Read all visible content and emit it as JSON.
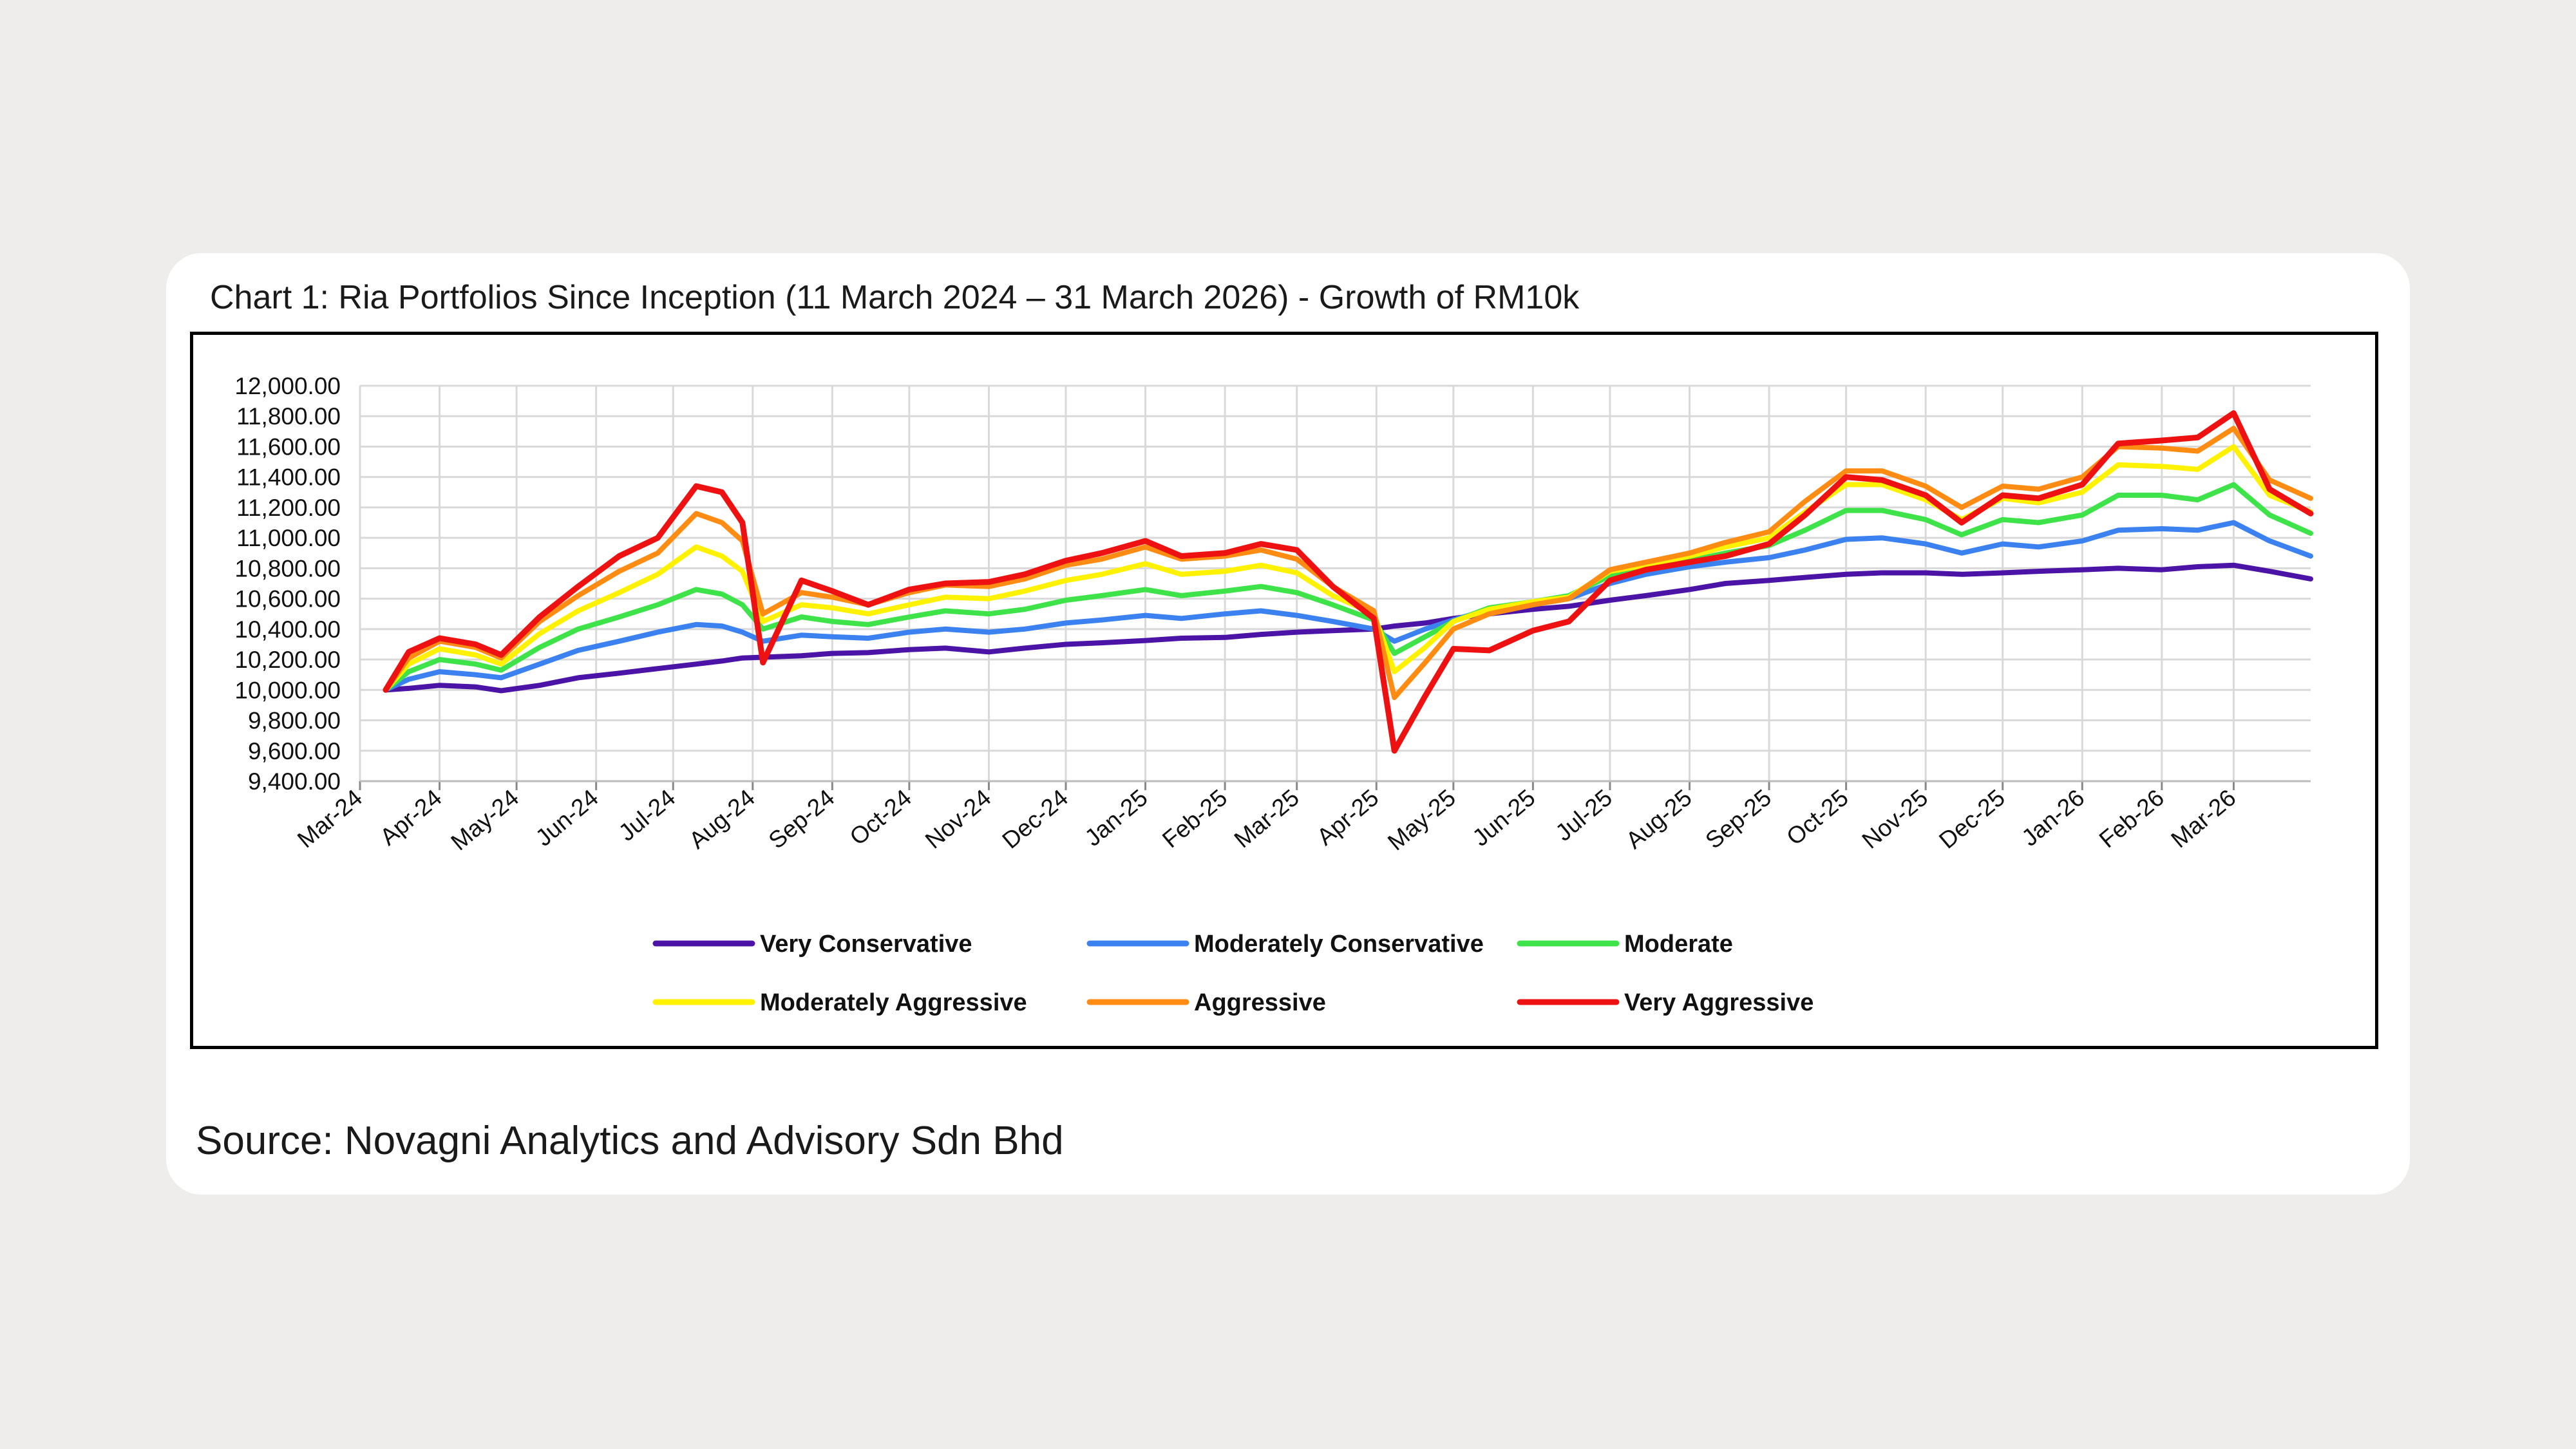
{
  "title": "Chart 1: Ria Portfolios Since Inception (11 March 2024 – 31 March 2026) - Growth of RM10k",
  "source": "Source: Novagni Analytics and Advisory Sdn Bhd",
  "chart_data": {
    "type": "line",
    "title": "Chart 1: Ria Portfolios Since Inception (11 March 2024 – 31 March 2026) - Growth of RM10k",
    "xlabel": "",
    "ylabel": "",
    "ylim": [
      9400,
      12000
    ],
    "grid": true,
    "legend_position": "bottom",
    "y_ticks": [
      "12,000.00",
      "11,800.00",
      "11,600.00",
      "11,400.00",
      "11,200.00",
      "11,000.00",
      "10,800.00",
      "10,600.00",
      "10,400.00",
      "10,200.00",
      "10,000.00",
      "9,800.00",
      "9,600.00",
      "9,400.00"
    ],
    "x_ticks": [
      "Mar-24",
      "Apr-24",
      "May-24",
      "Jun-24",
      "Jul-24",
      "Aug-24",
      "Sep-24",
      "Oct-24",
      "Nov-24",
      "Dec-24",
      "Jan-25",
      "Feb-25",
      "Mar-25",
      "Apr-25",
      "May-25",
      "Jun-25",
      "Jul-25",
      "Aug-25",
      "Sep-25",
      "Oct-25",
      "Nov-25",
      "Dec-25",
      "Jan-26",
      "Feb-26",
      "Mar-26"
    ],
    "x": [
      "2024-03-11",
      "2024-03-20",
      "2024-04-01",
      "2024-04-15",
      "2024-04-25",
      "2024-05-10",
      "2024-05-25",
      "2024-06-10",
      "2024-06-25",
      "2024-07-10",
      "2024-07-20",
      "2024-07-28",
      "2024-08-05",
      "2024-08-20",
      "2024-09-01",
      "2024-09-15",
      "2024-10-01",
      "2024-10-15",
      "2024-11-01",
      "2024-11-15",
      "2024-12-01",
      "2024-12-15",
      "2025-01-01",
      "2025-01-15",
      "2025-02-01",
      "2025-02-15",
      "2025-03-01",
      "2025-03-15",
      "2025-03-31",
      "2025-04-08",
      "2025-04-20",
      "2025-05-01",
      "2025-05-15",
      "2025-06-01",
      "2025-06-15",
      "2025-07-01",
      "2025-07-15",
      "2025-08-01",
      "2025-08-15",
      "2025-09-01",
      "2025-09-15",
      "2025-10-01",
      "2025-10-15",
      "2025-11-01",
      "2025-11-15",
      "2025-12-01",
      "2025-12-15",
      "2026-01-01",
      "2026-01-15",
      "2026-02-01",
      "2026-02-15",
      "2026-03-01",
      "2026-03-15",
      "2026-03-31"
    ],
    "series": [
      {
        "name": "Very Conservative",
        "color": "#4b14a6",
        "values": [
          10000,
          10010,
          10030,
          10020,
          9995,
          10030,
          10080,
          10110,
          10140,
          10170,
          10190,
          10210,
          10215,
          10225,
          10240,
          10245,
          10265,
          10275,
          10250,
          10275,
          10300,
          10310,
          10325,
          10340,
          10345,
          10365,
          10380,
          10390,
          10400,
          10420,
          10440,
          10470,
          10500,
          10530,
          10550,
          10590,
          10620,
          10660,
          10700,
          10720,
          10740,
          10760,
          10770,
          10770,
          10760,
          10770,
          10780,
          10790,
          10800,
          10790,
          10810,
          10820,
          10780,
          10730
        ]
      },
      {
        "name": "Moderately Conservative",
        "color": "#3b82f0",
        "values": [
          10000,
          10070,
          10120,
          10100,
          10080,
          10170,
          10260,
          10320,
          10380,
          10430,
          10420,
          10380,
          10320,
          10360,
          10350,
          10340,
          10380,
          10400,
          10380,
          10400,
          10440,
          10460,
          10490,
          10470,
          10500,
          10520,
          10490,
          10450,
          10400,
          10320,
          10400,
          10460,
          10530,
          10560,
          10600,
          10700,
          10760,
          10810,
          10840,
          10870,
          10920,
          10990,
          11000,
          10960,
          10900,
          10960,
          10940,
          10980,
          11050,
          11060,
          11050,
          11100,
          10980,
          10880
        ]
      },
      {
        "name": "Moderate",
        "color": "#3ee34a",
        "values": [
          10000,
          10120,
          10200,
          10170,
          10130,
          10280,
          10400,
          10480,
          10560,
          10660,
          10630,
          10560,
          10400,
          10480,
          10450,
          10430,
          10480,
          10520,
          10500,
          10530,
          10590,
          10620,
          10660,
          10620,
          10650,
          10680,
          10640,
          10560,
          10460,
          10240,
          10350,
          10450,
          10540,
          10580,
          10620,
          10750,
          10800,
          10850,
          10900,
          10950,
          11050,
          11180,
          11180,
          11120,
          11020,
          11120,
          11100,
          11150,
          11280,
          11280,
          11250,
          11350,
          11150,
          11030
        ]
      },
      {
        "name": "Moderately Aggressive",
        "color": "#fff200",
        "values": [
          10000,
          10170,
          10270,
          10230,
          10170,
          10370,
          10520,
          10640,
          10760,
          10940,
          10880,
          10780,
          10450,
          10560,
          10540,
          10500,
          10560,
          10610,
          10600,
          10650,
          10720,
          10760,
          10830,
          10760,
          10780,
          10820,
          10770,
          10620,
          10500,
          10120,
          10280,
          10450,
          10530,
          10580,
          10610,
          10780,
          10820,
          10880,
          10940,
          11000,
          11170,
          11350,
          11350,
          11250,
          11120,
          11260,
          11230,
          11300,
          11480,
          11470,
          11450,
          11600,
          11280,
          11170
        ]
      },
      {
        "name": "Aggressive",
        "color": "#ff8c12",
        "values": [
          10000,
          10210,
          10320,
          10280,
          10210,
          10450,
          10620,
          10780,
          10900,
          11160,
          11100,
          10980,
          10500,
          10640,
          10610,
          10560,
          10640,
          10690,
          10680,
          10730,
          10820,
          10860,
          10940,
          10860,
          10880,
          10920,
          10860,
          10680,
          10520,
          9950,
          10180,
          10400,
          10500,
          10560,
          10600,
          10790,
          10840,
          10900,
          10970,
          11040,
          11240,
          11440,
          11440,
          11340,
          11200,
          11340,
          11320,
          11400,
          11600,
          11590,
          11570,
          11720,
          11380,
          11260
        ]
      },
      {
        "name": "Very Aggressive",
        "color": "#ee1111",
        "values": [
          10000,
          10250,
          10340,
          10300,
          10230,
          10480,
          10680,
          10880,
          11000,
          11340,
          11300,
          11100,
          10180,
          10720,
          10650,
          10560,
          10660,
          10700,
          10710,
          10760,
          10850,
          10900,
          10980,
          10880,
          10900,
          10960,
          10920,
          10680,
          10470,
          9600,
          9960,
          10270,
          10260,
          10390,
          10450,
          10720,
          10790,
          10840,
          10880,
          10960,
          11150,
          11400,
          11380,
          11280,
          11100,
          11280,
          11260,
          11350,
          11620,
          11640,
          11660,
          11820,
          11320,
          11160
        ]
      }
    ]
  }
}
